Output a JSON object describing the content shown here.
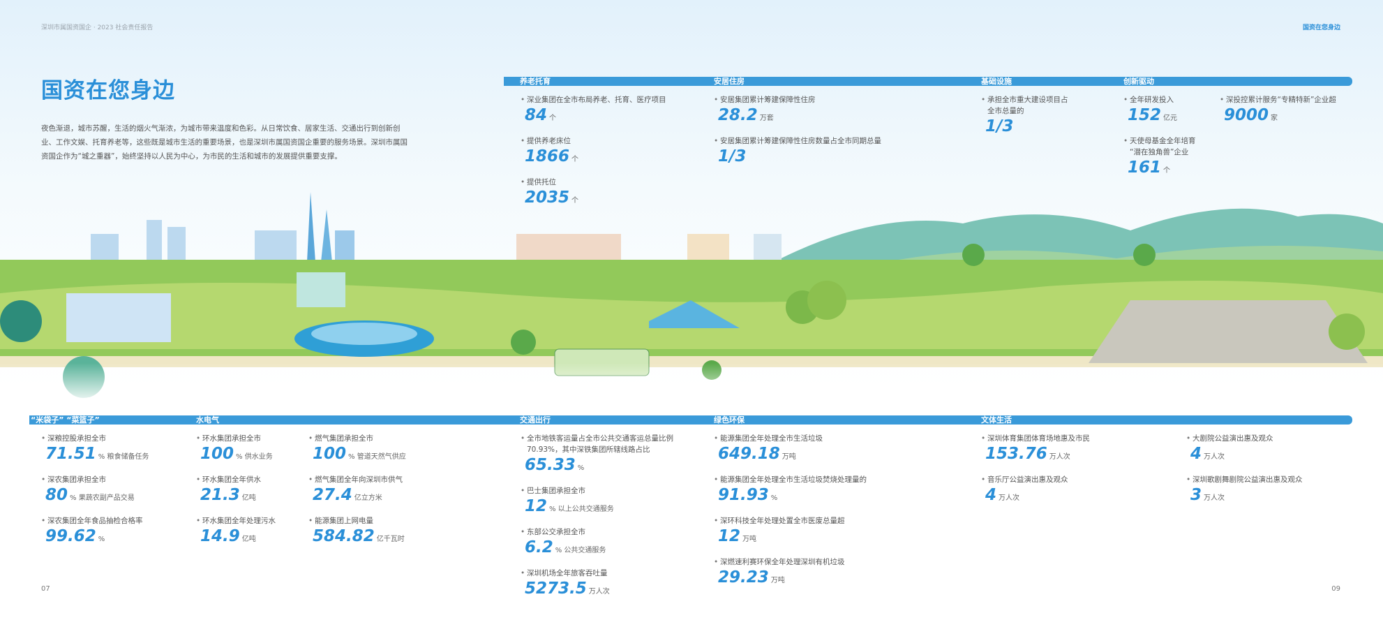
{
  "header": {
    "left": "深圳市属国资国企 · 2023 社会责任报告",
    "right": "国资在您身边"
  },
  "title": "国资在您身边",
  "intro": "夜色渐退，城市苏醒，生活的烟火气渐浓，为城市带来温度和色彩。从日常饮食、居家生活、交通出行到创新创业、工作文娱、托育养老等，这些既是城市生活的重要场景，也是深圳市属国资国企重要的服务场景。深圳市属国资国企作为“城之重器”，始终坚持以人民为中心，为市民的生活和城市的发展提供重要支撑。",
  "top_sections": [
    {
      "name": "养老托育",
      "columns": [
        [
          {
            "label": "深业集团在全市布局养老、托育、医疗项目",
            "value": "84",
            "unit": "个"
          },
          {
            "label": "提供养老床位",
            "value": "1866",
            "unit": "个"
          },
          {
            "label": "提供托位",
            "value": "2035",
            "unit": "个"
          }
        ]
      ]
    },
    {
      "name": "安居住房",
      "columns": [
        [
          {
            "label": "安居集团累计筹建保障性住房",
            "value": "28.2",
            "unit": "万套"
          },
          {
            "label": "安居集团累计筹建保障性住房数量占全市同期总量",
            "value": "1/3"
          }
        ]
      ]
    },
    {
      "name": "基础设施",
      "columns": [
        [
          {
            "label": "承担全市重大建设项目占全市总量的",
            "value": "1/3"
          }
        ]
      ]
    },
    {
      "name": "创新驱动",
      "columns": [
        [
          {
            "label": "全年研发投入",
            "value": "152",
            "unit": "亿元"
          },
          {
            "label": "天使母基金全年培育“潜在独角兽”企业",
            "value": "161",
            "unit": "个"
          }
        ],
        [
          {
            "label": "深投控累计服务“专精特新”企业超",
            "value": "9000",
            "unit": "家"
          }
        ]
      ]
    }
  ],
  "bottom_sections": [
    {
      "name": "“米袋子” “菜篮子”",
      "columns": [
        [
          {
            "label": "深粮控股承担全市",
            "value": "71.51",
            "unit": "% 粮食储备任务"
          },
          {
            "label": "深农集团承担全市",
            "value": "80",
            "unit": "% 果蔬农副产品交易"
          },
          {
            "label": "深农集团全年食品抽检合格率",
            "value": "99.62",
            "unit": "%"
          }
        ]
      ]
    },
    {
      "name": "水电气",
      "columns": [
        [
          {
            "label": "环水集团承担全市",
            "value": "100",
            "unit": "% 供水业务"
          },
          {
            "label": "环水集团全年供水",
            "value": "21.3",
            "unit": "亿吨"
          },
          {
            "label": "环水集团全年处理污水",
            "value": "14.9",
            "unit": "亿吨"
          }
        ],
        [
          {
            "label": "燃气集团承担全市",
            "value": "100",
            "unit": "% 管道天然气供应"
          },
          {
            "label": "燃气集团全年向深圳市供气",
            "value": "27.4",
            "unit": "亿立方米"
          },
          {
            "label": "能源集团上网电量",
            "value": "584.82",
            "unit": "亿千瓦时"
          }
        ]
      ]
    },
    {
      "name": "交通出行",
      "columns": [
        [
          {
            "label": "全市地铁客运量占全市公共交通客运总量比例70.93%，其中深铁集团所辖线路占比",
            "value": "65.33",
            "unit": "%"
          },
          {
            "label": "巴士集团承担全市",
            "value": "12",
            "unit": "% 以上公共交通服务"
          },
          {
            "label": "东部公交承担全市",
            "value": "6.2",
            "unit": "% 公共交通服务"
          },
          {
            "label": "深圳机场全年旅客吞吐量",
            "value": "5273.5",
            "unit": "万人次"
          }
        ]
      ]
    },
    {
      "name": "绿色环保",
      "columns": [
        [
          {
            "label": "能源集团全年处理全市生活垃圾",
            "value": "649.18",
            "unit": "万吨"
          },
          {
            "label": "能源集团全年处理全市生活垃圾焚烧处理量的",
            "value": "91.93",
            "unit": "%"
          },
          {
            "label": "深环科技全年处理处置全市医废总量超",
            "value": "12",
            "unit": "万吨"
          },
          {
            "label": "深燃速利赛环保全年处理深圳有机垃圾",
            "value": "29.23",
            "unit": "万吨"
          }
        ]
      ]
    },
    {
      "name": "文体生活",
      "columns": [
        [
          {
            "label": "深圳体育集团体育场地惠及市民",
            "value": "153.76",
            "unit": "万人次"
          },
          {
            "label": "音乐厅公益演出惠及观众",
            "value": "4",
            "unit": "万人次"
          }
        ],
        [
          {
            "label": "大剧院公益演出惠及观众",
            "value": "4",
            "unit": "万人次"
          },
          {
            "label": "深圳歌剧舞剧院公益演出惠及观众",
            "value": "3",
            "unit": "万人次"
          }
        ]
      ]
    }
  ],
  "pages": [
    "07",
    "09"
  ]
}
